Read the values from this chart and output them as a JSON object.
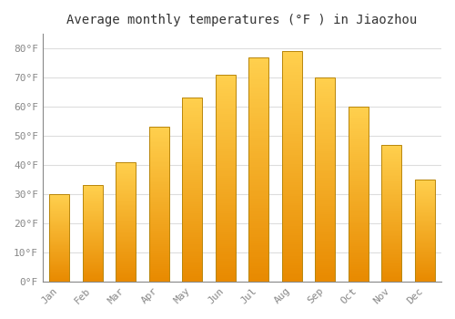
{
  "title": "Average monthly temperatures (°F ) in Jiaozhou",
  "months": [
    "Jan",
    "Feb",
    "Mar",
    "Apr",
    "May",
    "Jun",
    "Jul",
    "Aug",
    "Sep",
    "Oct",
    "Nov",
    "Dec"
  ],
  "values": [
    30,
    33,
    41,
    53,
    63,
    71,
    77,
    79,
    70,
    60,
    47,
    35
  ],
  "bar_color_light": "#FFD04E",
  "bar_color_dark": "#E88A00",
  "bar_edge_color": "#B8860B",
  "background_color": "#FFFFFF",
  "plot_bg_color": "#FFFFFF",
  "grid_color": "#DDDDDD",
  "yticks": [
    0,
    10,
    20,
    30,
    40,
    50,
    60,
    70,
    80
  ],
  "ytick_labels": [
    "0°F",
    "10°F",
    "20°F",
    "30°F",
    "40°F",
    "50°F",
    "60°F",
    "70°F",
    "80°F"
  ],
  "ylim": [
    0,
    85
  ],
  "title_fontsize": 10,
  "tick_fontsize": 8,
  "tick_color": "#888888",
  "font_family": "monospace",
  "bar_width": 0.6
}
